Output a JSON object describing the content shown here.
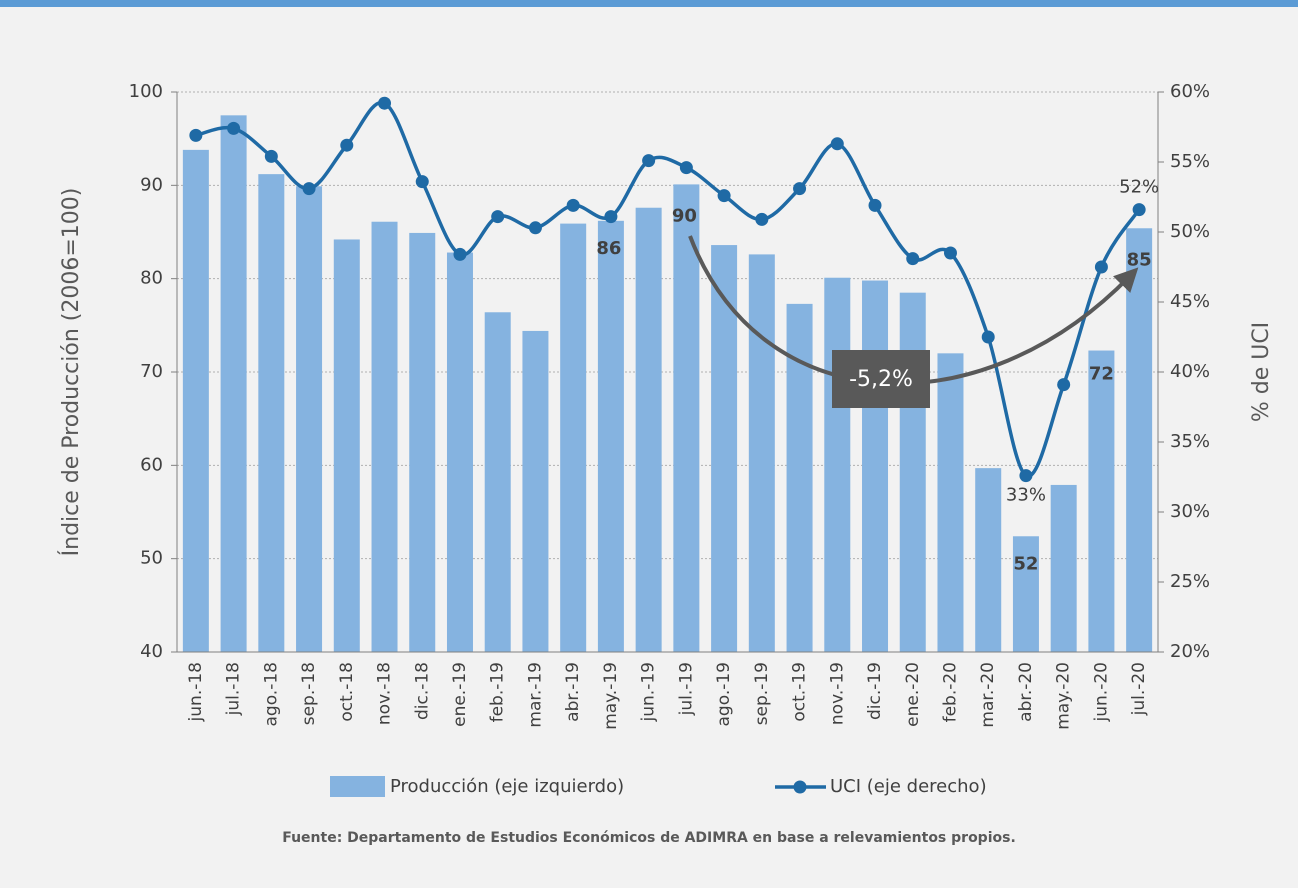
{
  "chart_data": {
    "type": "bar_line",
    "categories": [
      "jun.-18",
      "jul.-18",
      "ago.-18",
      "sep.-18",
      "oct.-18",
      "nov.-18",
      "dic.-18",
      "ene.-19",
      "feb.-19",
      "mar.-19",
      "abr.-19",
      "may.-19",
      "jun.-19",
      "jul.-19",
      "ago.-19",
      "sep.-19",
      "oct.-19",
      "nov.-19",
      "dic.-19",
      "ene.-20",
      "feb.-20",
      "mar.-20",
      "abr.-20",
      "may.-20",
      "jun.-20",
      "jul.-20"
    ],
    "series": [
      {
        "name": "Producción (eje izquierdo)",
        "type": "bar",
        "color": "#85b3e0",
        "values": [
          93.8,
          97.5,
          91.2,
          89.9,
          84.2,
          86.1,
          84.9,
          82.8,
          76.4,
          74.4,
          85.9,
          86.2,
          87.6,
          90.1,
          83.6,
          82.6,
          77.3,
          80.1,
          79.8,
          78.5,
          72.0,
          59.7,
          52.4,
          57.9,
          72.3,
          85.4
        ],
        "value_labels": [
          null,
          null,
          null,
          null,
          null,
          null,
          null,
          null,
          null,
          null,
          null,
          "86",
          null,
          "90",
          null,
          null,
          null,
          null,
          null,
          null,
          null,
          null,
          "52",
          null,
          "72",
          "85"
        ]
      },
      {
        "name": "UCI (eje derecho)",
        "type": "line",
        "axis": "y2",
        "color": "#1f6aa5",
        "values": [
          56.9,
          57.4,
          55.4,
          53.1,
          56.2,
          59.2,
          53.6,
          48.4,
          51.1,
          50.3,
          51.9,
          51.1,
          55.1,
          54.6,
          52.6,
          50.9,
          53.1,
          56.3,
          51.9,
          48.1,
          48.5,
          42.5,
          32.6,
          39.1,
          47.5,
          51.6
        ],
        "value_labels": [
          null,
          null,
          null,
          null,
          null,
          null,
          null,
          null,
          null,
          null,
          null,
          null,
          null,
          null,
          null,
          null,
          null,
          null,
          null,
          null,
          null,
          null,
          "33%",
          null,
          null,
          "52%"
        ]
      }
    ],
    "ylabel": "Índice de Producción (2006=100)",
    "y2label": "% de UCI",
    "ylim": [
      40,
      100
    ],
    "yticks": [
      40,
      50,
      60,
      70,
      80,
      90,
      100
    ],
    "y2lim": [
      20,
      60
    ],
    "y2ticks": [
      {
        "value": 20,
        "label": "20%"
      },
      {
        "value": 25,
        "label": "25%"
      },
      {
        "value": 30,
        "label": "30%"
      },
      {
        "value": 35,
        "label": "35%"
      },
      {
        "value": 40,
        "label": "40%"
      },
      {
        "value": 45,
        "label": "45%"
      },
      {
        "value": 50,
        "label": "50%"
      },
      {
        "value": 55,
        "label": "55%"
      },
      {
        "value": 60,
        "label": "60%"
      }
    ],
    "grid": true,
    "annotation": "-5,2%",
    "source": "Fuente: Departamento de Estudios Económicos de ADIMRA en base a relevamientos propios."
  }
}
